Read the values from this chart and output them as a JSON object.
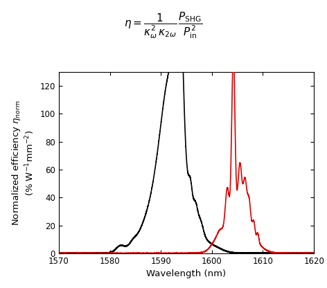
{
  "xlim": [
    1570,
    1620
  ],
  "ylim": [
    0,
    130
  ],
  "xticks": [
    1570,
    1580,
    1590,
    1600,
    1610,
    1620
  ],
  "yticks": [
    0,
    20,
    40,
    60,
    80,
    100,
    120
  ],
  "xlabel": "Wavelength (nm)",
  "black_color": "#000000",
  "red_color": "#dd0000",
  "background": "#ffffff",
  "linewidth": 1.2,
  "formula_fontsize": 11,
  "tick_labelsize": 8.5,
  "axis_labelsize": 9.5
}
